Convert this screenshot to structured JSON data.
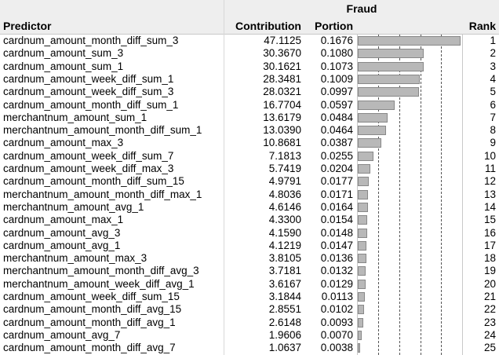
{
  "table": {
    "group_header": "Fraud",
    "columns": {
      "predictor": "Predictor",
      "contribution": "Contribution",
      "portion": "Portion",
      "rank": "Rank"
    },
    "max_portion": 0.1676,
    "rows": [
      {
        "predictor": "cardnum_amount_month_diff_sum_3",
        "contribution": "47.1125",
        "portion": "0.1676",
        "rank": "1",
        "portion_value": 0.1676
      },
      {
        "predictor": "cardnum_amount_sum_3",
        "contribution": "30.3670",
        "portion": "0.1080",
        "rank": "2",
        "portion_value": 0.108
      },
      {
        "predictor": "cardnum_amount_sum_1",
        "contribution": "30.1621",
        "portion": "0.1073",
        "rank": "3",
        "portion_value": 0.1073
      },
      {
        "predictor": "cardnum_amount_week_diff_sum_1",
        "contribution": "28.3481",
        "portion": "0.1009",
        "rank": "4",
        "portion_value": 0.1009
      },
      {
        "predictor": "cardnum_amount_week_diff_sum_3",
        "contribution": "28.0321",
        "portion": "0.0997",
        "rank": "5",
        "portion_value": 0.0997
      },
      {
        "predictor": "cardnum_amount_month_diff_sum_1",
        "contribution": "16.7704",
        "portion": "0.0597",
        "rank": "6",
        "portion_value": 0.0597
      },
      {
        "predictor": "merchantnum_amount_sum_1",
        "contribution": "13.6179",
        "portion": "0.0484",
        "rank": "7",
        "portion_value": 0.0484
      },
      {
        "predictor": "merchantnum_amount_month_diff_sum_1",
        "contribution": "13.0390",
        "portion": "0.0464",
        "rank": "8",
        "portion_value": 0.0464
      },
      {
        "predictor": "cardnum_amount_max_3",
        "contribution": "10.8681",
        "portion": "0.0387",
        "rank": "9",
        "portion_value": 0.0387
      },
      {
        "predictor": "cardnum_amount_week_diff_sum_7",
        "contribution": "7.1813",
        "portion": "0.0255",
        "rank": "10",
        "portion_value": 0.0255
      },
      {
        "predictor": "cardnum_amount_week_diff_max_3",
        "contribution": "5.7419",
        "portion": "0.0204",
        "rank": "11",
        "portion_value": 0.0204
      },
      {
        "predictor": "cardnum_amount_month_diff_sum_15",
        "contribution": "4.9791",
        "portion": "0.0177",
        "rank": "12",
        "portion_value": 0.0177
      },
      {
        "predictor": "merchantnum_amount_month_diff_max_1",
        "contribution": "4.8036",
        "portion": "0.0171",
        "rank": "13",
        "portion_value": 0.0171
      },
      {
        "predictor": "merchantnum_amount_avg_1",
        "contribution": "4.6146",
        "portion": "0.0164",
        "rank": "14",
        "portion_value": 0.0164
      },
      {
        "predictor": "cardnum_amount_max_1",
        "contribution": "4.3300",
        "portion": "0.0154",
        "rank": "15",
        "portion_value": 0.0154
      },
      {
        "predictor": "cardnum_amount_avg_3",
        "contribution": "4.1590",
        "portion": "0.0148",
        "rank": "16",
        "portion_value": 0.0148
      },
      {
        "predictor": "cardnum_amount_avg_1",
        "contribution": "4.1219",
        "portion": "0.0147",
        "rank": "17",
        "portion_value": 0.0147
      },
      {
        "predictor": "merchantnum_amount_max_3",
        "contribution": "3.8105",
        "portion": "0.0136",
        "rank": "18",
        "portion_value": 0.0136
      },
      {
        "predictor": "merchantnum_amount_month_diff_avg_3",
        "contribution": "3.7181",
        "portion": "0.0132",
        "rank": "19",
        "portion_value": 0.0132
      },
      {
        "predictor": "merchantnum_amount_week_diff_avg_1",
        "contribution": "3.6167",
        "portion": "0.0129",
        "rank": "20",
        "portion_value": 0.0129
      },
      {
        "predictor": "cardnum_amount_week_diff_sum_15",
        "contribution": "3.1844",
        "portion": "0.0113",
        "rank": "21",
        "portion_value": 0.0113
      },
      {
        "predictor": "cardnum_amount_month_diff_avg_15",
        "contribution": "2.8551",
        "portion": "0.0102",
        "rank": "22",
        "portion_value": 0.0102
      },
      {
        "predictor": "cardnum_amount_month_diff_avg_1",
        "contribution": "2.6148",
        "portion": "0.0093",
        "rank": "23",
        "portion_value": 0.0093
      },
      {
        "predictor": "cardnum_amount_avg_7",
        "contribution": "1.9606",
        "portion": "0.0070",
        "rank": "24",
        "portion_value": 0.007
      },
      {
        "predictor": "cardnum_amount_month_diff_avg_7",
        "contribution": "1.0637",
        "portion": "0.0038",
        "rank": "25",
        "portion_value": 0.0038
      }
    ]
  }
}
